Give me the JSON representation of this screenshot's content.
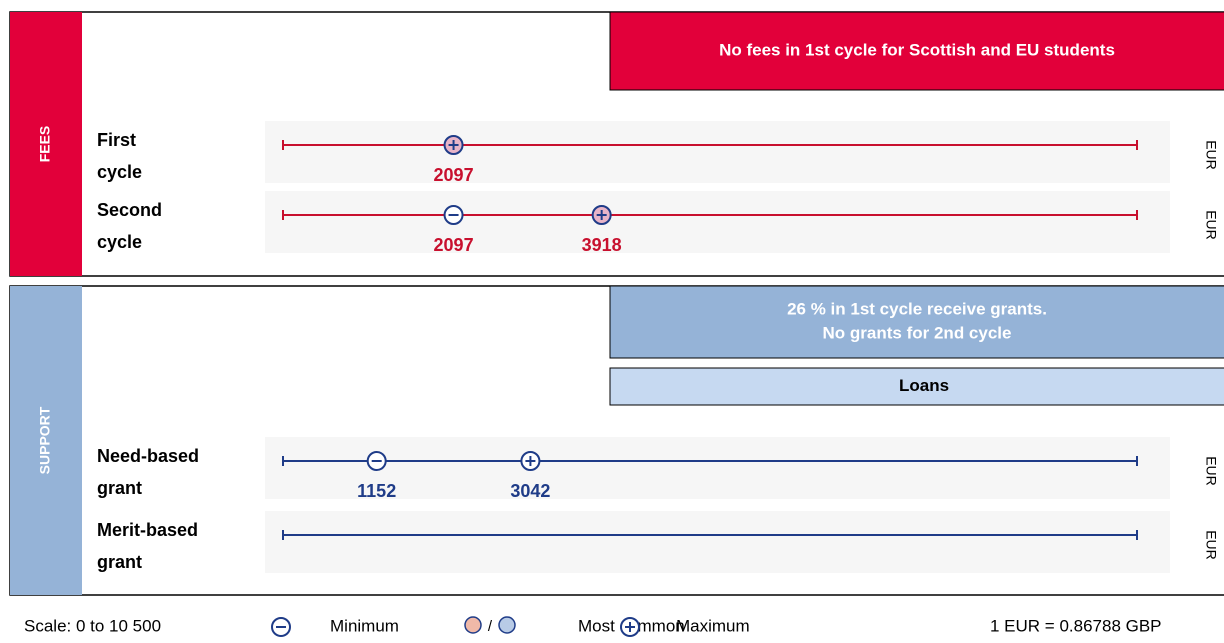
{
  "scale": {
    "label": "Scale: 0 to 10 500",
    "min": 0,
    "max": 10500
  },
  "sections": [
    {
      "title": "FEES",
      "color": "#e2003a",
      "line_color": "#c8102e",
      "value_color": "#c8102e",
      "banner": [
        "No fees in 1st cycle for Scottish and EU students"
      ],
      "rows": [
        {
          "label": [
            "First",
            "cycle"
          ],
          "unit": "EUR",
          "markers": [
            {
              "kind": "max",
              "value": 2097,
              "common": true
            }
          ]
        },
        {
          "label": [
            "Second",
            "cycle"
          ],
          "unit": "EUR",
          "markers": [
            {
              "kind": "min",
              "value": 2097,
              "common": false
            },
            {
              "kind": "max",
              "value": 3918,
              "common": true
            }
          ]
        }
      ]
    },
    {
      "title": "SUPPORT",
      "color": "#95b3d7",
      "line_color": "#1f3c88",
      "value_color": "#1f3c88",
      "banner": [
        "26 % in 1st cycle receive grants.",
        "No grants for 2nd cycle"
      ],
      "loans": "Loans",
      "rows": [
        {
          "label": [
            "Need-based",
            "grant"
          ],
          "unit": "EUR",
          "markers": [
            {
              "kind": "min",
              "value": 1152,
              "common": false
            },
            {
              "kind": "max",
              "value": 3042,
              "common": false
            }
          ]
        },
        {
          "label": [
            "Merit-based",
            "grant"
          ],
          "unit": "EUR",
          "markers": []
        }
      ]
    }
  ],
  "legend": {
    "minimum": "Minimum",
    "separator": "/",
    "most_common": "Most common",
    "maximum": "Maximum",
    "rate": "1 EUR = 0.86788 GBP"
  }
}
